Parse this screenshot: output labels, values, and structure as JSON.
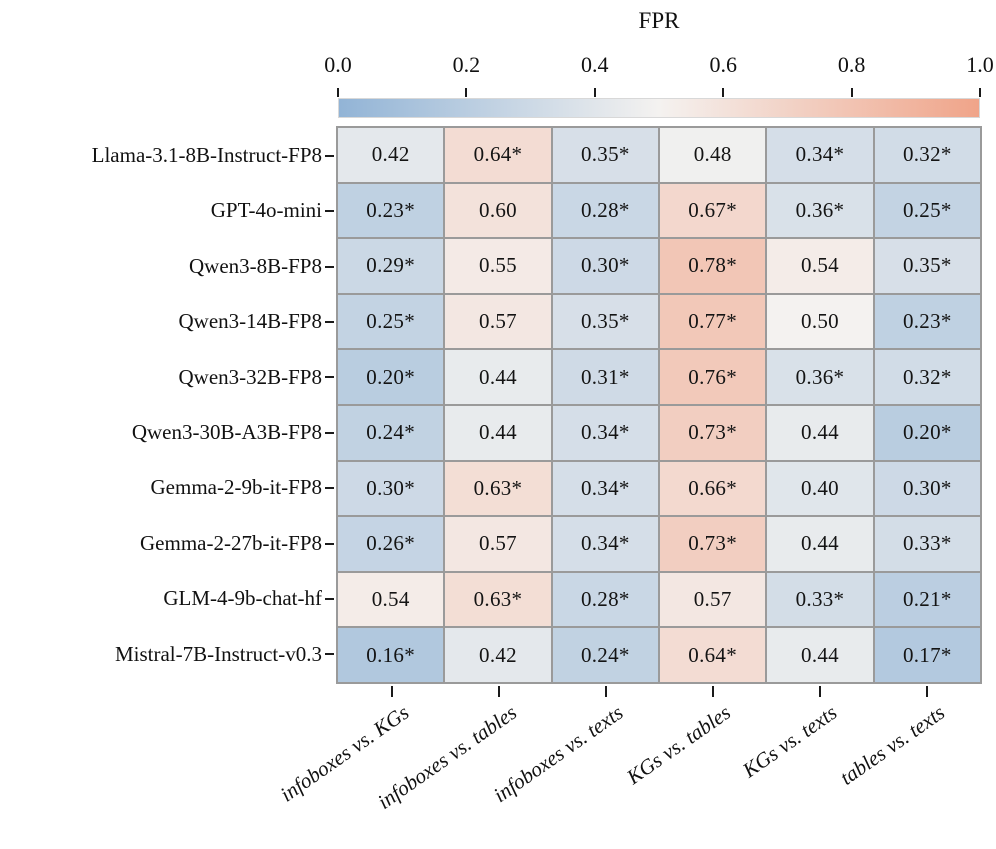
{
  "chart_data": {
    "type": "heatmap",
    "title": "FPR",
    "colorbar": {
      "label": "FPR",
      "orientation": "horizontal",
      "position": "top",
      "tick_labels": [
        "0.0",
        "0.2",
        "0.4",
        "0.6",
        "0.8",
        "1.0"
      ],
      "vmin": 0.0,
      "vmax": 1.0
    },
    "colormap_stops": [
      {
        "at": 0.0,
        "color": "#92b4d6"
      },
      {
        "at": 0.5,
        "color": "#f4f2f0"
      },
      {
        "at": 1.0,
        "color": "#f0a489"
      }
    ],
    "grid_line_color": "#9a9a9a",
    "rows": [
      "Llama-3.1-8B-Instruct-FP8",
      "GPT-4o-mini",
      "Qwen3-8B-FP8",
      "Qwen3-14B-FP8",
      "Qwen3-32B-FP8",
      "Qwen3-30B-A3B-FP8",
      "Gemma-2-9b-it-FP8",
      "Gemma-2-27b-it-FP8",
      "GLM-4-9b-chat-hf",
      "Mistral-7B-Instruct-v0.3"
    ],
    "columns": [
      "infoboxes vs. KGs",
      "infoboxes vs. tables",
      "infoboxes vs. texts",
      "KGs vs. tables",
      "KGs vs. texts",
      "tables vs. texts"
    ],
    "cell_labels": [
      [
        "0.42",
        "0.64*",
        "0.35*",
        "0.48",
        "0.34*",
        "0.32*"
      ],
      [
        "0.23*",
        "0.60",
        "0.28*",
        "0.67*",
        "0.36*",
        "0.25*"
      ],
      [
        "0.29*",
        "0.55",
        "0.30*",
        "0.78*",
        "0.54",
        "0.35*"
      ],
      [
        "0.25*",
        "0.57",
        "0.35*",
        "0.77*",
        "0.50",
        "0.23*"
      ],
      [
        "0.20*",
        "0.44",
        "0.31*",
        "0.76*",
        "0.36*",
        "0.32*"
      ],
      [
        "0.24*",
        "0.44",
        "0.34*",
        "0.73*",
        "0.44",
        "0.20*"
      ],
      [
        "0.30*",
        "0.63*",
        "0.34*",
        "0.66*",
        "0.40",
        "0.30*"
      ],
      [
        "0.26*",
        "0.57",
        "0.34*",
        "0.73*",
        "0.44",
        "0.33*"
      ],
      [
        "0.54",
        "0.63*",
        "0.28*",
        "0.57",
        "0.33*",
        "0.21*"
      ],
      [
        "0.16*",
        "0.42",
        "0.24*",
        "0.64*",
        "0.44",
        "0.17*"
      ]
    ],
    "values": [
      [
        0.42,
        0.64,
        0.35,
        0.48,
        0.34,
        0.32
      ],
      [
        0.23,
        0.6,
        0.28,
        0.67,
        0.36,
        0.25
      ],
      [
        0.29,
        0.55,
        0.3,
        0.78,
        0.54,
        0.35
      ],
      [
        0.25,
        0.57,
        0.35,
        0.77,
        0.5,
        0.23
      ],
      [
        0.2,
        0.44,
        0.31,
        0.76,
        0.36,
        0.32
      ],
      [
        0.24,
        0.44,
        0.34,
        0.73,
        0.44,
        0.2
      ],
      [
        0.3,
        0.63,
        0.34,
        0.66,
        0.4,
        0.3
      ],
      [
        0.26,
        0.57,
        0.34,
        0.73,
        0.44,
        0.33
      ],
      [
        0.54,
        0.63,
        0.28,
        0.57,
        0.33,
        0.21
      ],
      [
        0.16,
        0.42,
        0.24,
        0.64,
        0.44,
        0.17
      ]
    ]
  }
}
